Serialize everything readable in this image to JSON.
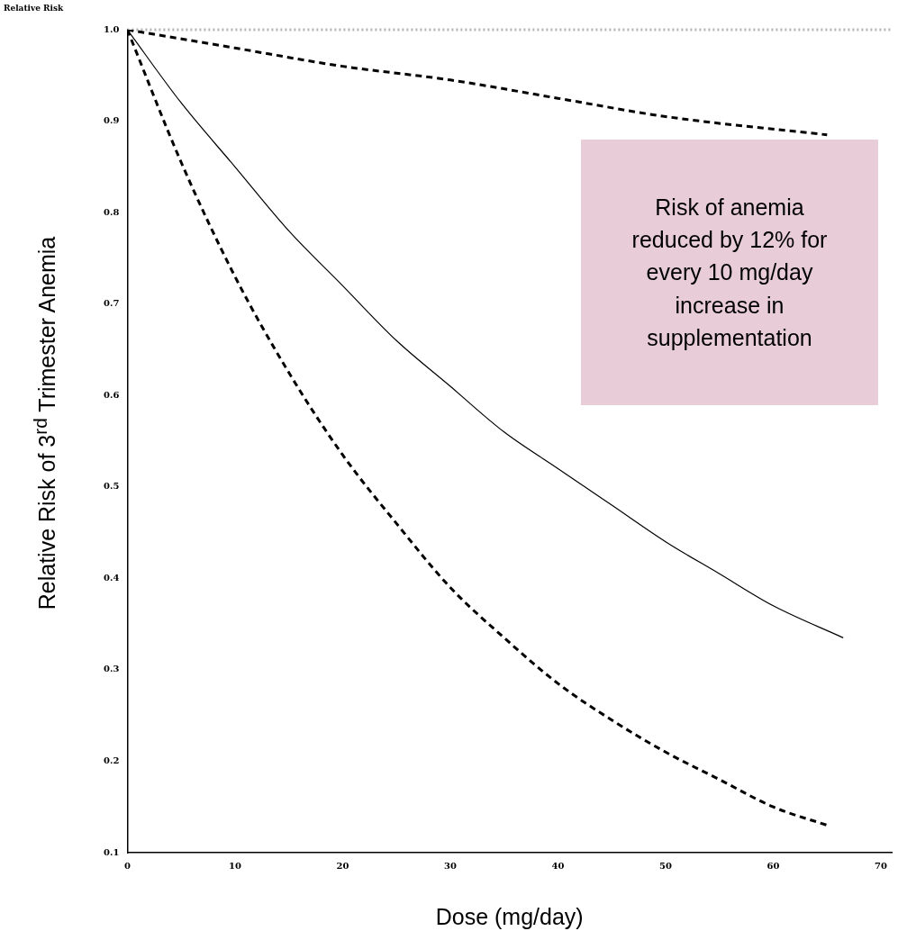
{
  "chart_data": {
    "type": "line",
    "xlabel": "Dose (mg/day)",
    "ylabel": "Relative Risk of 3$^{rd}$ Trimester Anemia",
    "annotations": [
      "Relative Risk",
      "Risk of anemia reduced by 12% for every 10 mg/day increase in supplementation"
    ],
    "xlim": [
      0,
      71
    ],
    "xticks": [
      0,
      10,
      20,
      30,
      40,
      50,
      60,
      70
    ],
    "ylim": [
      0.1,
      1.0
    ],
    "yticks": [
      {
        "value": 0.1,
        "label": "0.1"
      },
      {
        "value": 0.2,
        "label": "0.2"
      },
      {
        "value": 0.3,
        "label": "0.3"
      },
      {
        "value": 0.4,
        "label": "0.4"
      },
      {
        "value": 0.5,
        "label": "0.5"
      },
      {
        "value": 0.6,
        "label": "0.6"
      },
      {
        "value": 0.7,
        "label": "0.7"
      },
      {
        "value": 0.8,
        "label": "0.8"
      },
      {
        "value": 0.9,
        "label": "0.9"
      },
      {
        "value": 1.0,
        "label": "1.0"
      }
    ],
    "grid": false,
    "legend": false,
    "marker": "none",
    "ref_lines": [
      {
        "axis": "y",
        "value": 1.0,
        "color": "#b4b4b4",
        "line_style": "dotted"
      }
    ],
    "series": [
      {
        "color": "#000000",
        "line_style": "solid",
        "x": [
          0,
          5,
          10,
          15,
          20,
          25,
          30,
          35,
          40,
          45,
          50,
          55,
          60,
          66.5
        ],
        "values": [
          1.0,
          0.92,
          0.85,
          0.78,
          0.72,
          0.66,
          0.61,
          0.56,
          0.52,
          0.48,
          0.44,
          0.405,
          0.37,
          0.335
        ]
      },
      {
        "color": "#000000",
        "line_style": "dashed",
        "x": [
          0,
          5,
          10,
          15,
          20,
          25,
          30,
          35,
          40,
          45,
          50,
          55,
          60,
          65
        ],
        "values": [
          1.0,
          0.855,
          0.73,
          0.625,
          0.535,
          0.46,
          0.39,
          0.335,
          0.285,
          0.245,
          0.21,
          0.18,
          0.15,
          0.13
        ]
      },
      {
        "color": "#000000",
        "line_style": "dashed",
        "x": [
          0,
          10,
          20,
          30,
          40,
          50,
          65
        ],
        "values": [
          1.0,
          0.98,
          0.96,
          0.945,
          0.925,
          0.905,
          0.885
        ]
      }
    ]
  }
}
